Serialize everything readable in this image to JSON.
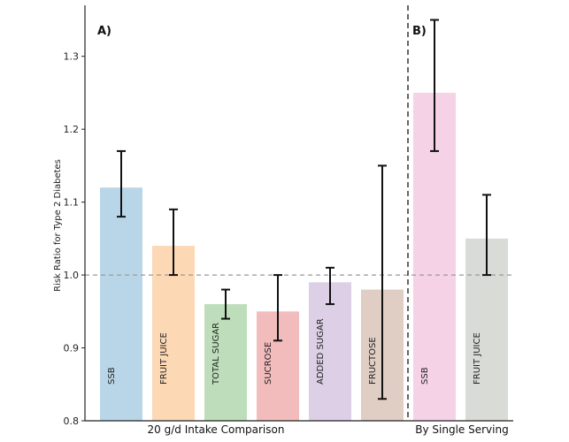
{
  "chart_data": {
    "type": "bar",
    "ylabel": "Risk Ratio for Type 2 Diabetes",
    "ylim": [
      0.8,
      1.37
    ],
    "yticks": [
      "0.8",
      "0.9",
      "1.0",
      "1.1",
      "1.2",
      "1.3"
    ],
    "reference_line": 1.0,
    "panels": [
      {
        "label": "A)",
        "group_label": "20 g/d Intake Comparison",
        "categories": [
          "SSB",
          "FRUIT JUICE",
          "TOTAL SUGAR",
          "SUCROSE",
          "ADDED SUGAR",
          "FRUCTOSE"
        ],
        "values": [
          1.12,
          1.04,
          0.96,
          0.95,
          0.99,
          0.98
        ],
        "ci_lower": [
          1.08,
          1.0,
          0.94,
          0.91,
          0.96,
          0.83
        ],
        "ci_upper": [
          1.17,
          1.09,
          0.98,
          1.0,
          1.01,
          1.15
        ],
        "colors": [
          "#b9d6e8",
          "#fdd8b4",
          "#bedebb",
          "#f2bcbd",
          "#dccfe6",
          "#e0cdc3"
        ]
      },
      {
        "label": "B)",
        "group_label": "By Single Serving",
        "categories": [
          "SSB",
          "FRUIT JUICE"
        ],
        "values": [
          1.25,
          1.05
        ],
        "ci_lower": [
          1.17,
          1.0
        ],
        "ci_upper": [
          1.35,
          1.11
        ],
        "colors": [
          "#f6d2e6",
          "#d9dbd7"
        ]
      }
    ]
  }
}
